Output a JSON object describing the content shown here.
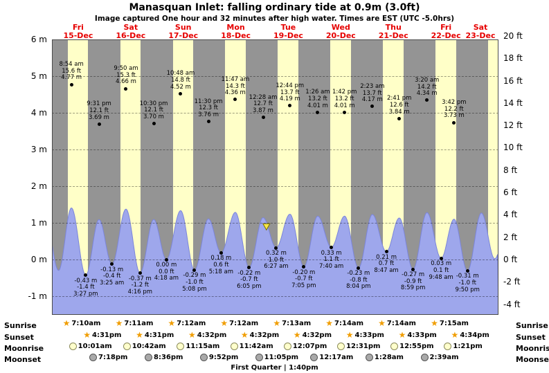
{
  "title": "Manasquan Inlet: falling ordinary tide at 0.9m (3.0ft)",
  "subtitle": "Image captured One hour and 32 minutes after high water. Times are EST (UTC -5.0hrs)",
  "day_headers": [
    {
      "dow": "Fri",
      "date": "15-Dec"
    },
    {
      "dow": "Sat",
      "date": "16-Dec"
    },
    {
      "dow": "Sun",
      "date": "17-Dec"
    },
    {
      "dow": "Mon",
      "date": "18-Dec"
    },
    {
      "dow": "Tue",
      "date": "19-Dec"
    },
    {
      "dow": "Wed",
      "date": "20-Dec"
    },
    {
      "dow": "Thu",
      "date": "21-Dec"
    },
    {
      "dow": "Fri",
      "date": "22-Dec"
    },
    {
      "dow": "Sat",
      "date": "23-Dec"
    }
  ],
  "axes": {
    "left_m": [
      "6 m",
      "5 m",
      "4 m",
      "3 m",
      "2 m",
      "1 m",
      "0 m",
      "-1 m"
    ],
    "right_ft": [
      "20 ft",
      "18 ft",
      "16 ft",
      "14 ft",
      "12 ft",
      "10 ft",
      "8 ft",
      "6 ft",
      "4 ft",
      "2 ft",
      "0 ft",
      "-2 ft",
      "-4 ft"
    ]
  },
  "chart_data": {
    "type": "area",
    "series_name": "tide height",
    "x_range": [
      "Fri 15-Dec 00:00",
      "Sat 23-Dec 12:00 EST"
    ],
    "x_days": 8.5,
    "ylim_m": [
      -1.5,
      6.1
    ],
    "y_left_unit": "m",
    "y_right_unit": "ft",
    "grid": true,
    "high_tides": [
      {
        "day": 0,
        "time": "8:54 am",
        "ft": "15.6 ft",
        "m": "4.77 m"
      },
      {
        "day": 0,
        "time": "9:31 pm",
        "ft": "12.1 ft",
        "m": "3.69 m"
      },
      {
        "day": 1,
        "time": "9:50 am",
        "ft": "15.3 ft",
        "m": "4.66 m"
      },
      {
        "day": 1,
        "time": "10:30 pm",
        "ft": "12.1 ft",
        "m": "3.70 m"
      },
      {
        "day": 2,
        "time": "10:48 am",
        "ft": "14.8 ft",
        "m": "4.52 m"
      },
      {
        "day": 2,
        "time": "11:30 pm",
        "ft": "12.3 ft",
        "m": "3.76 m"
      },
      {
        "day": 3,
        "time": "11:47 am",
        "ft": "14.3 ft",
        "m": "4.36 m"
      },
      {
        "day": 4,
        "time": "12:28 am",
        "ft": "12.7 ft",
        "m": "3.87 m"
      },
      {
        "day": 4,
        "time": "12:44 pm",
        "ft": "13.7 ft",
        "m": "4.19 m"
      },
      {
        "day": 5,
        "time": "1:26 am",
        "ft": "13.2 ft",
        "m": "4.01 m"
      },
      {
        "day": 5,
        "time": "1:42 pm",
        "ft": "13.2 ft",
        "m": "4.01 m"
      },
      {
        "day": 6,
        "time": "2:23 am",
        "ft": "13.7 ft",
        "m": "4.17 m"
      },
      {
        "day": 6,
        "time": "2:41 pm",
        "ft": "12.6 ft",
        "m": "3.84 m"
      },
      {
        "day": 7,
        "time": "3:20 am",
        "ft": "14.2 ft",
        "m": "4.34 m"
      },
      {
        "day": 7,
        "time": "3:42 pm",
        "ft": "12.2 ft",
        "m": "3.73 m"
      }
    ],
    "low_tides": [
      {
        "day": 0,
        "m": "-0.43 m",
        "ft": "-1.4 ft",
        "time": "3:27 pm"
      },
      {
        "day": 1,
        "m": "-0.13 m",
        "ft": "-0.4 ft",
        "time": "3:25 am"
      },
      {
        "day": 1,
        "m": "-0.37 m",
        "ft": "-1.2 ft",
        "time": "4:16 pm"
      },
      {
        "day": 2,
        "m": "0.00 m",
        "ft": "0.0 ft",
        "time": "4:18 am"
      },
      {
        "day": 2,
        "m": "-0.29 m",
        "ft": "-1.0 ft",
        "time": "5:08 pm"
      },
      {
        "day": 3,
        "m": "0.18 m",
        "ft": "0.6 ft",
        "time": "5:18 am"
      },
      {
        "day": 3,
        "m": "-0.22 m",
        "ft": "-0.7 ft",
        "time": "6:05 pm"
      },
      {
        "day": 4,
        "m": "0.32 m",
        "ft": "1.0 ft",
        "time": "6:27 am"
      },
      {
        "day": 4,
        "m": "-0.20 m",
        "ft": "-0.7 ft",
        "time": "7:05 pm"
      },
      {
        "day": 5,
        "m": "0.33 m",
        "ft": "1.1 ft",
        "time": "7:40 am"
      },
      {
        "day": 5,
        "m": "-0.23 m",
        "ft": "-0.8 ft",
        "time": "8:04 pm"
      },
      {
        "day": 6,
        "m": "0.21 m",
        "ft": "0.7 ft",
        "time": "8:47 am"
      },
      {
        "day": 6,
        "m": "-0.27 m",
        "ft": "-0.9 ft",
        "time": "8:59 pm"
      },
      {
        "day": 7,
        "m": "0.03 m",
        "ft": "0.1 ft",
        "time": "9:48 am"
      },
      {
        "day": 7,
        "m": "-0.31 m",
        "ft": "-1.0 ft",
        "time": "9:50 pm"
      }
    ],
    "current_tide_marker": {
      "label": "falling tide at 0.9m (3.0ft)",
      "day": 4,
      "time": "2:00 am",
      "m": 0.9
    }
  },
  "almanac": {
    "rows": [
      {
        "label": "Sunrise",
        "icon": "sunrise-star",
        "entries": [
          {
            "day": 0,
            "time": "7:10am"
          },
          {
            "day": 1,
            "time": "7:11am"
          },
          {
            "day": 2,
            "time": "7:12am"
          },
          {
            "day": 3,
            "time": "7:12am"
          },
          {
            "day": 4,
            "time": "7:13am"
          },
          {
            "day": 5,
            "time": "7:14am"
          },
          {
            "day": 6,
            "time": "7:14am"
          },
          {
            "day": 7,
            "time": "7:15am"
          }
        ]
      },
      {
        "label": "Sunset",
        "icon": "sunset-star",
        "entries": [
          {
            "day": 0,
            "time": "4:31pm"
          },
          {
            "day": 1,
            "time": "4:31pm"
          },
          {
            "day": 2,
            "time": "4:32pm"
          },
          {
            "day": 3,
            "time": "4:32pm"
          },
          {
            "day": 4,
            "time": "4:32pm"
          },
          {
            "day": 5,
            "time": "4:33pm"
          },
          {
            "day": 6,
            "time": "4:33pm"
          },
          {
            "day": 7,
            "time": "4:34pm"
          }
        ]
      },
      {
        "label": "Moonrise",
        "icon": "moonrise-circle",
        "entries": [
          {
            "day": 0,
            "time": "10:01am"
          },
          {
            "day": 1,
            "time": "10:42am"
          },
          {
            "day": 2,
            "time": "11:15am"
          },
          {
            "day": 3,
            "time": "11:42am"
          },
          {
            "day": 4,
            "time": "12:07pm"
          },
          {
            "day": 5,
            "time": "12:31pm"
          },
          {
            "day": 6,
            "time": "12:55pm"
          },
          {
            "day": 7,
            "time": "1:21pm"
          }
        ]
      },
      {
        "label": "Moonset",
        "icon": "moonset-circle",
        "entries": [
          {
            "day": 0,
            "time": "7:18pm"
          },
          {
            "day": 1,
            "time": "8:36pm"
          },
          {
            "day": 2,
            "time": "9:52pm"
          },
          {
            "day": 3,
            "time": "11:05pm"
          },
          {
            "day": 5,
            "time": "12:17am"
          },
          {
            "day": 6,
            "time": "1:28am"
          },
          {
            "day": 7,
            "time": "2:39am"
          }
        ]
      }
    ],
    "moon_phase": "First Quarter | 1:40pm"
  },
  "colors": {
    "night_band": "#949494",
    "day_band": "#ffffc8",
    "tide_fill": "#9ea7ec",
    "tide_stroke": "#7b85da",
    "day_label": "#e60000",
    "marker_fill": "#f6e649",
    "marker_stroke": "#7a7000"
  }
}
